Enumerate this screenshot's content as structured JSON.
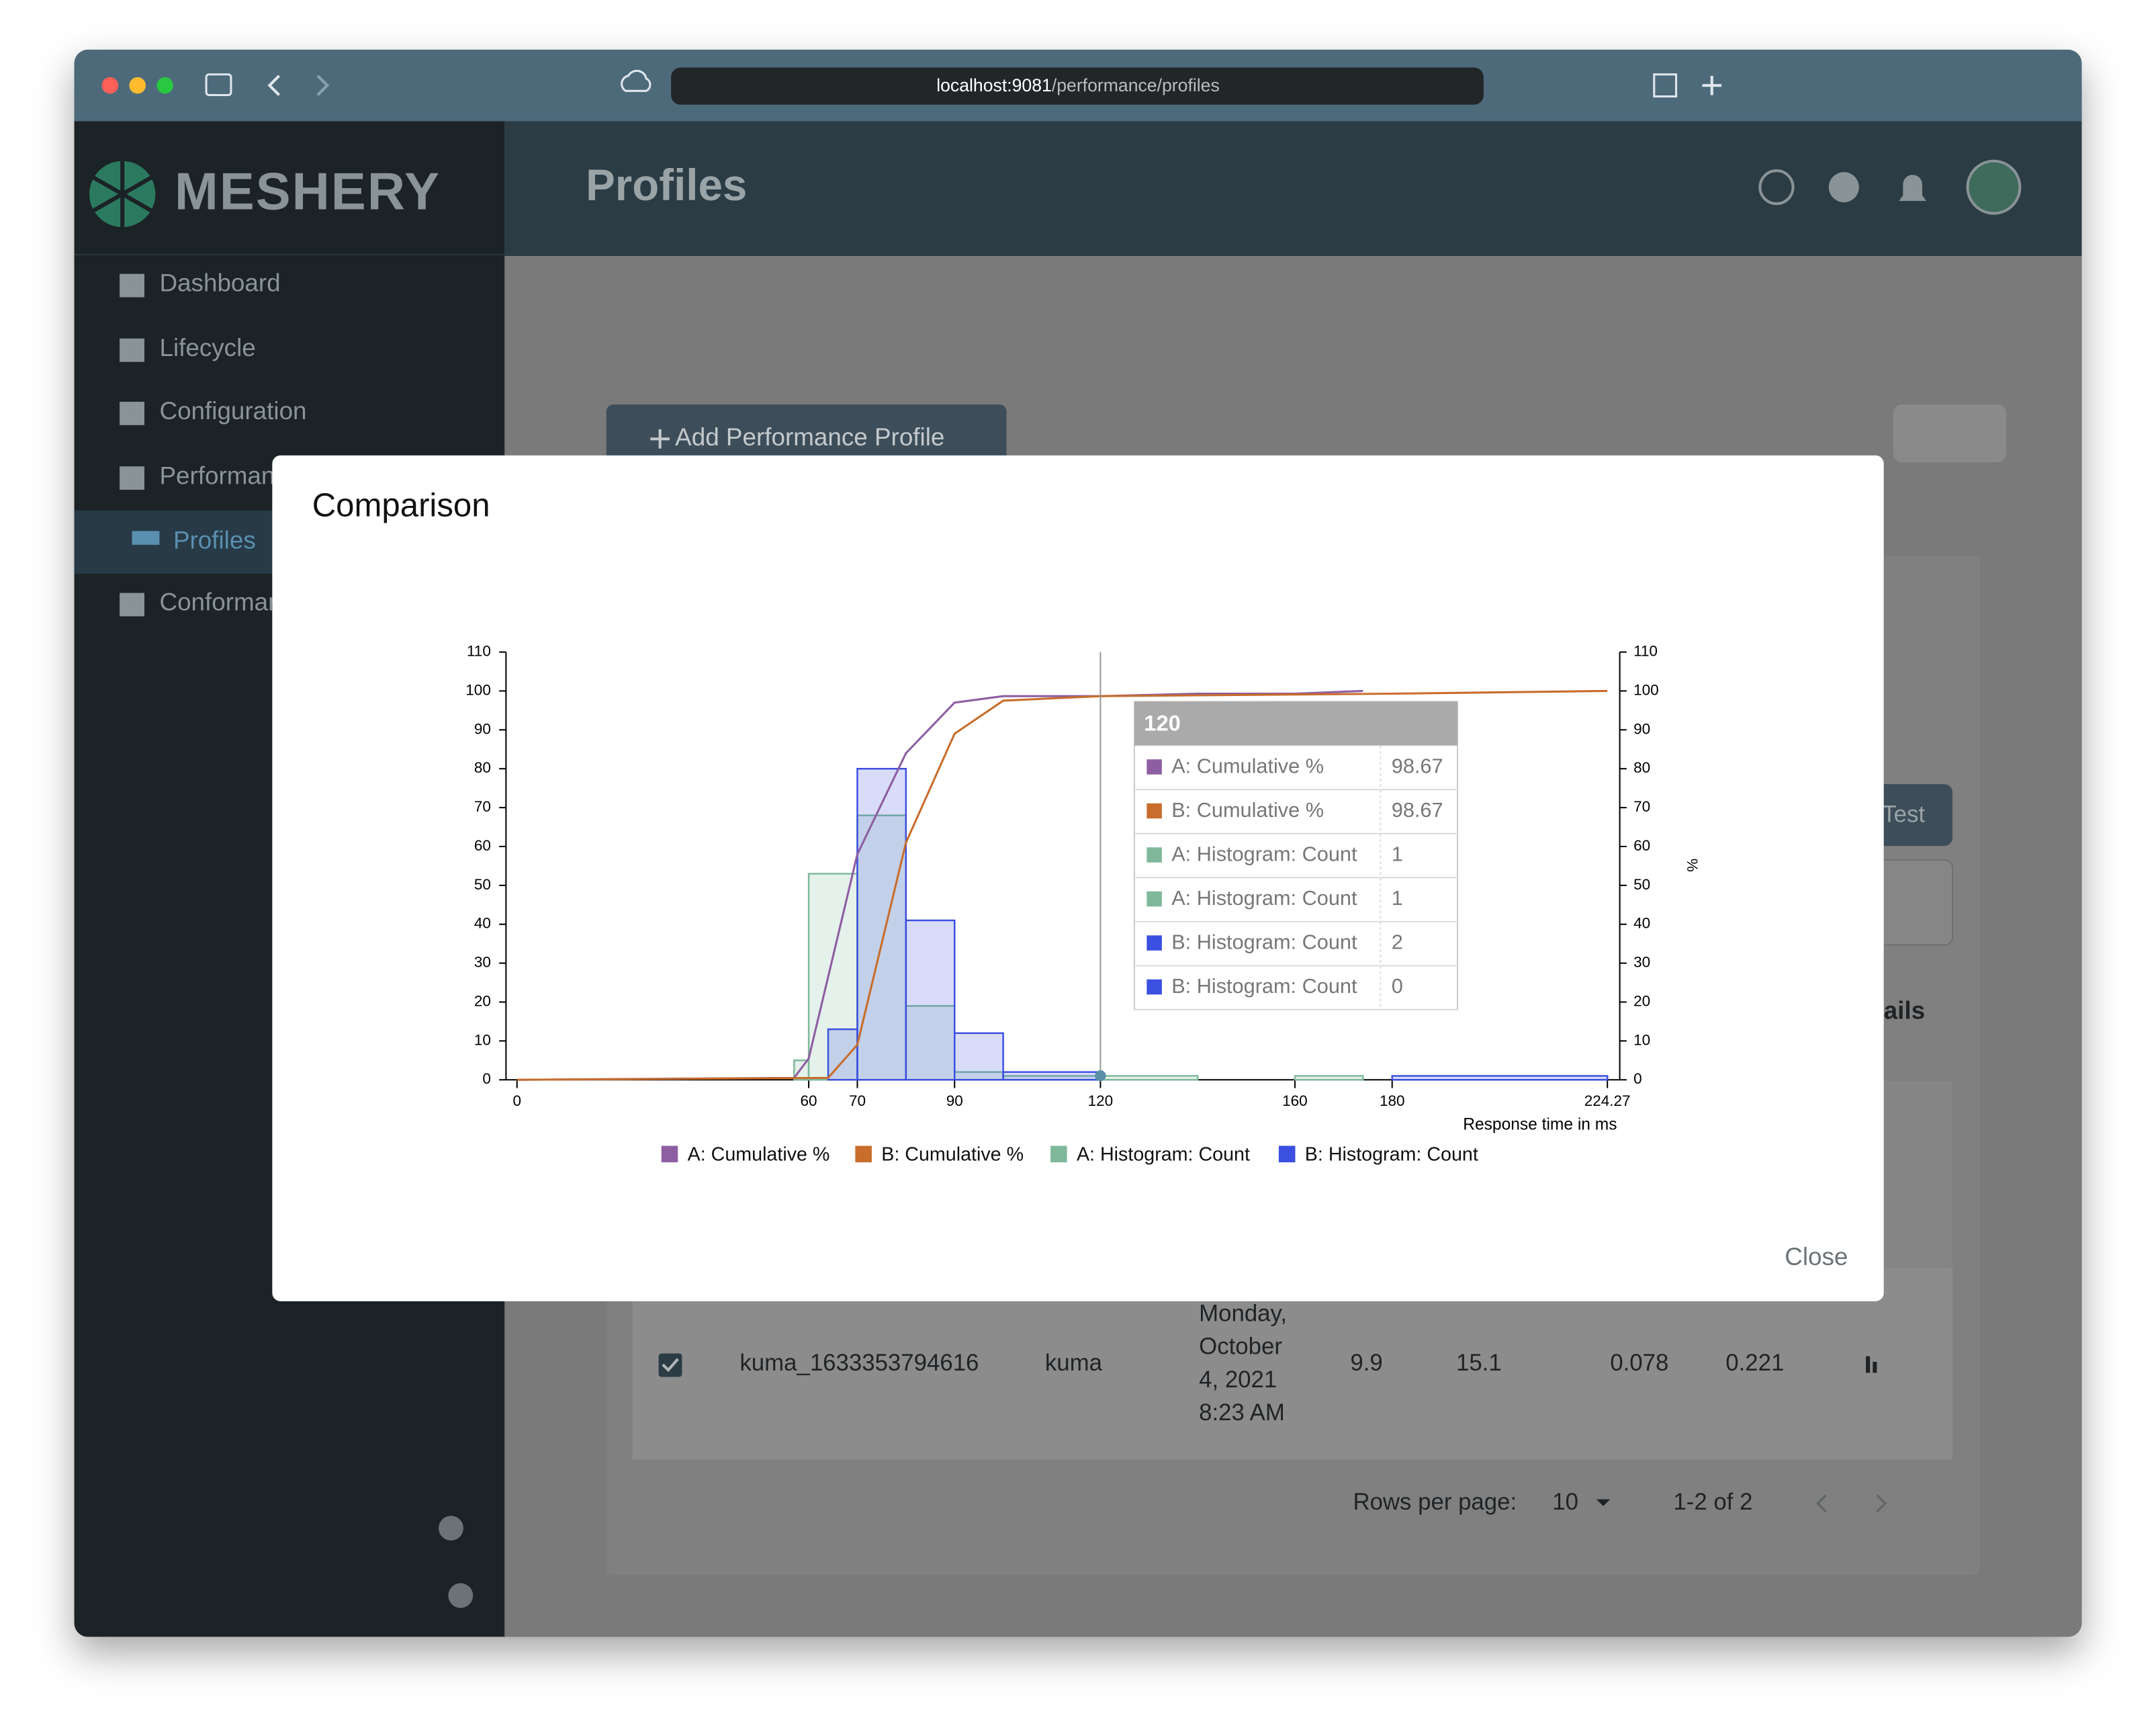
{
  "browser": {
    "url_host": "localhost:9081",
    "url_path": "/performance/profiles"
  },
  "sidebar": {
    "logo": "MESHERY",
    "items": [
      "Dashboard",
      "Lifecycle",
      "Configuration",
      "Performance",
      "Profiles",
      "Conformance"
    ]
  },
  "header": {
    "title": "Profiles"
  },
  "page": {
    "add_button": "Add Performance Profile",
    "run_button": "Run Test",
    "details_heading": "Details",
    "table": {
      "rows": [
        [
          "kuma_1633353794616",
          "kuma",
          [
            "Monday,",
            "October",
            "4, 2021",
            "8:23 AM"
          ],
          9.9,
          15.1,
          0.078,
          0.221
        ]
      ]
    },
    "pagination": {
      "rows_per_page_label": "Rows per page:",
      "rows_per_page": 10,
      "range": "1-2 of 2"
    }
  },
  "modal": {
    "title": "Comparison",
    "close": "Close"
  },
  "chart_data": {
    "type": "combo",
    "xlabel": "Response time in ms",
    "y2label": "%",
    "xlim": [
      0,
      224.27
    ],
    "xticks": [
      0,
      60,
      70,
      90,
      120,
      160,
      180,
      224.27
    ],
    "ylim": [
      0,
      110
    ],
    "yticks": [
      0,
      10,
      20,
      30,
      40,
      50,
      60,
      70,
      80,
      90,
      100,
      110
    ],
    "y2lim": [
      0,
      110
    ],
    "y2ticks": [
      0,
      10,
      20,
      30,
      40,
      50,
      60,
      70,
      80,
      90,
      100,
      110
    ],
    "series": [
      {
        "name": "A: Cumulative %",
        "type": "line",
        "axis": "y2",
        "color": "#8e5ea2",
        "x": [
          0,
          57,
          60,
          70,
          80,
          90,
          100,
          120,
          140,
          160,
          174
        ],
        "values": [
          0,
          0.5,
          5.5,
          58,
          84,
          97,
          98.67,
          98.67,
          99.3,
          99.3,
          100
        ]
      },
      {
        "name": "B: Cumulative %",
        "type": "line",
        "axis": "y2",
        "color": "#c86d2c",
        "x": [
          0,
          64,
          70,
          80,
          90,
          100,
          120,
          180,
          224.27
        ],
        "values": [
          0,
          0.5,
          9,
          61,
          89,
          97.5,
          98.67,
          99.3,
          100
        ]
      },
      {
        "name": "A: Histogram: Count",
        "type": "histogram",
        "color": "#7fb89a",
        "bins": [
          57,
          60,
          70,
          80,
          90,
          100,
          120,
          140,
          160,
          174
        ],
        "values": [
          5,
          53,
          68,
          19,
          2,
          1,
          1,
          0,
          1
        ]
      },
      {
        "name": "B: Histogram: Count",
        "type": "histogram",
        "color": "#3b4fe0",
        "bins": [
          64,
          70,
          80,
          90,
          100,
          120,
          180,
          224.27
        ],
        "values": [
          13,
          80,
          41,
          12,
          2,
          0,
          1
        ]
      }
    ],
    "tooltip": {
      "title": 120,
      "rows": [
        {
          "name": "A: Cumulative %",
          "color": "#8e5ea2",
          "value": 98.67
        },
        {
          "name": "B: Cumulative %",
          "color": "#c86d2c",
          "value": 98.67
        },
        {
          "name": "A: Histogram: Count",
          "color": "#7fb89a",
          "value": 1
        },
        {
          "name": "A: Histogram: Count",
          "color": "#7fb89a",
          "value": 1
        },
        {
          "name": "B: Histogram: Count",
          "color": "#3b4fe0",
          "value": 2
        },
        {
          "name": "B: Histogram: Count",
          "color": "#3b4fe0",
          "value": 0
        }
      ]
    }
  }
}
